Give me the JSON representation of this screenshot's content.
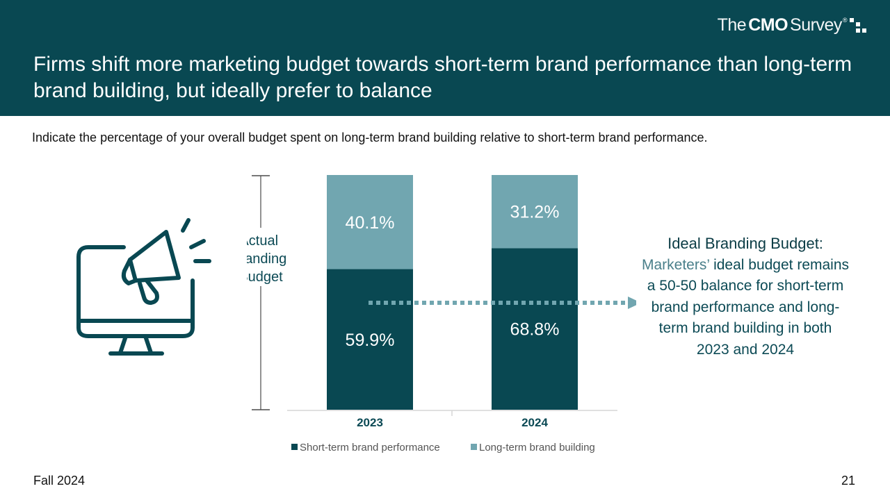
{
  "header": {
    "brand": {
      "prefix": "The",
      "bold": "CMO",
      "suffix": "Survey",
      "mark": "®"
    },
    "title": "Firms shift more marketing budget towards short-term brand performance than long-term brand building, but ideally prefer to balance"
  },
  "question": "Indicate the percentage of your overall budget spent on long-term brand building relative to short-term brand performance.",
  "icon": "monitor-megaphone-icon",
  "bracket_label": [
    "Actual",
    "Branding",
    "Budget"
  ],
  "chart_data": {
    "type": "bar",
    "stacked": true,
    "categories": [
      "2023",
      "2024"
    ],
    "series": [
      {
        "name": "Short-term brand performance",
        "values": [
          59.9,
          68.8
        ],
        "labels": [
          "59.9%",
          "68.8%"
        ],
        "color": "#094852"
      },
      {
        "name": "Long-term brand building",
        "values": [
          40.1,
          31.2
        ],
        "labels": [
          "40.1%",
          "31.2%"
        ],
        "color": "#71a6b0"
      }
    ],
    "ylim": [
      0,
      100
    ],
    "legend_position": "bottom",
    "annotation_arrow_at": 50
  },
  "callout": {
    "title": "Ideal Branding Budget:",
    "lead": "Marketers’",
    "body": "ideal budget remains a 50-50 balance for short-term brand performance and long-term brand building in both 2023 and 2024"
  },
  "footer": {
    "left": "Fall 2024",
    "page": "21"
  },
  "colors": {
    "header_bg": "#094852",
    "dark_teal": "#094852",
    "light_teal": "#71a6b0",
    "arrow": "#71a6b0",
    "callout_text": "#0c4a55"
  }
}
